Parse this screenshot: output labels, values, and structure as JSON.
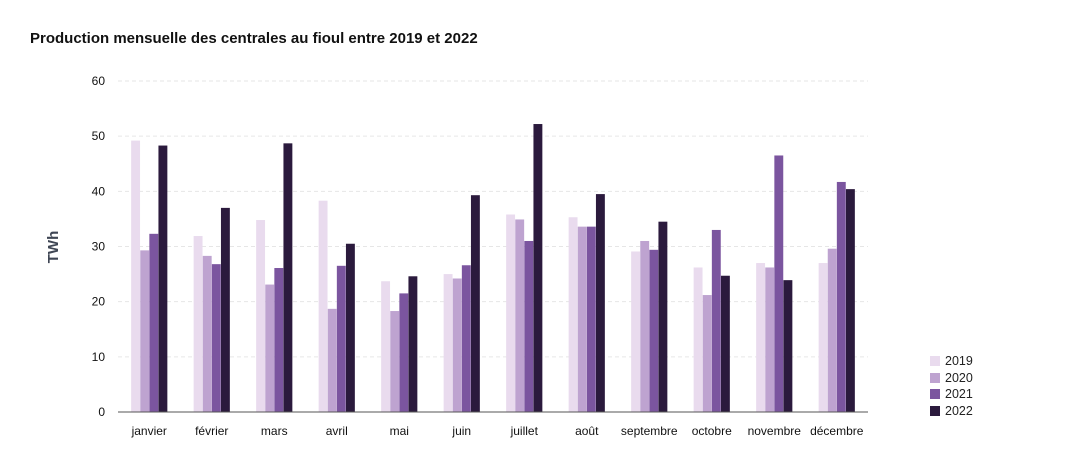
{
  "chart_data": {
    "type": "bar",
    "title": "Production mensuelle des centrales au fioul entre 2019 et 2022",
    "ylabel": "TWh",
    "xlabel": "",
    "ylim": [
      0,
      60
    ],
    "yticks": [
      0,
      10,
      20,
      30,
      40,
      50,
      60
    ],
    "grid": true,
    "legend_position": "bottom-right",
    "categories": [
      "janvier",
      "février",
      "mars",
      "avril",
      "mai",
      "juin",
      "juillet",
      "août",
      "septembre",
      "octobre",
      "novembre",
      "décembre"
    ],
    "series": [
      {
        "name": "2019",
        "color": "#e9dbee",
        "values": [
          49.2,
          31.9,
          34.8,
          38.3,
          23.7,
          25.0,
          35.8,
          35.3,
          29.1,
          26.2,
          27.0,
          27.0
        ]
      },
      {
        "name": "2020",
        "color": "#bea3d0",
        "values": [
          29.3,
          28.3,
          23.1,
          18.7,
          18.3,
          24.2,
          34.9,
          33.6,
          31.0,
          21.2,
          26.2,
          29.6
        ]
      },
      {
        "name": "2021",
        "color": "#7b559f",
        "values": [
          32.3,
          26.8,
          26.1,
          26.5,
          21.5,
          26.6,
          31.0,
          33.6,
          29.4,
          33.0,
          46.5,
          41.7
        ]
      },
      {
        "name": "2022",
        "color": "#2b1a3d",
        "values": [
          48.3,
          37.0,
          48.7,
          30.5,
          24.6,
          39.3,
          52.2,
          39.5,
          34.5,
          24.7,
          23.9,
          40.4
        ]
      }
    ]
  }
}
